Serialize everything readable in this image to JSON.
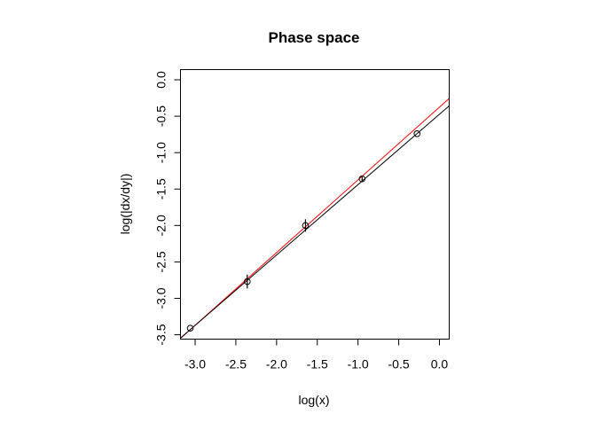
{
  "chart_data": {
    "type": "scatter",
    "title": "Phase space",
    "xlabel": "log(x)",
    "ylabel": "log(|dx/dy|)",
    "xlim": [
      -3.18,
      0.12
    ],
    "ylim": [
      -3.56,
      0.14
    ],
    "x_ticks": [
      "-3.0",
      "-2.5",
      "-2.0",
      "-1.5",
      "-1.0",
      "-0.5",
      "0.0"
    ],
    "y_ticks": [
      "0.0",
      "-0.5",
      "-1.0",
      "-1.5",
      "-2.0",
      "-2.5",
      "-3.0",
      "-3.5"
    ],
    "grid": false,
    "points": [
      {
        "x": -3.06,
        "y": -3.41,
        "err": 0.0
      },
      {
        "x": -2.36,
        "y": -2.77,
        "err": 0.095
      },
      {
        "x": -1.645,
        "y": -2.0,
        "err": 0.085
      },
      {
        "x": -0.95,
        "y": -1.36,
        "err": 0.03
      },
      {
        "x": -0.275,
        "y": -0.74,
        "err": 0.0
      }
    ],
    "lines": [
      {
        "color": "#ff0000",
        "slope": 0.998,
        "intercept": -0.376
      },
      {
        "color": "#000000",
        "slope": 0.966,
        "intercept": -0.473
      }
    ]
  }
}
